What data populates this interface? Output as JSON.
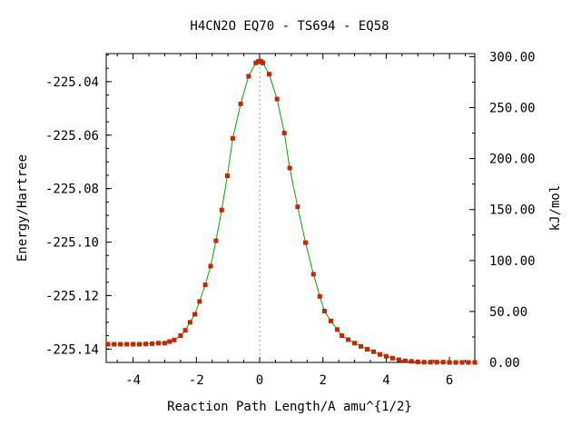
{
  "chart_data": {
    "type": "line",
    "title": "H4CN2O   EQ70 - TS694 - EQ58",
    "xlabel": "Reaction Path Length/A amu^{1/2}",
    "ylabel": "Energy/Hartree",
    "y2label": "kJ/mol",
    "xlim": [
      -4.85,
      6.8
    ],
    "ylim": [
      -225.145,
      -225.0295
    ],
    "y2lim": [
      0.0,
      303.0
    ],
    "x_ticks": [
      "-4",
      "-2",
      "0",
      "2",
      "4",
      "6"
    ],
    "y_ticks": [
      "-225.04",
      "-225.06",
      "-225.08",
      "-225.10",
      "-225.12",
      "-225.14"
    ],
    "y2_ticks": [
      "0.00",
      "50.00",
      "100.00",
      "150.00",
      "200.00",
      "250.00",
      "300.00"
    ],
    "ts_marker_x": 0.0,
    "grid": false,
    "colors": {
      "line": "#00aa00",
      "points": "#cc2200",
      "ts_line": "#999999"
    },
    "series": [
      {
        "x": [
          -4.8,
          -4.6,
          -4.4,
          -4.2,
          -4.0,
          -3.8,
          -3.6,
          -3.4,
          -3.2,
          -3.0,
          -2.85,
          -2.7,
          -2.5,
          -2.35,
          -2.2,
          -2.05,
          -1.9,
          -1.72,
          -1.55,
          -1.38,
          -1.2,
          -1.02,
          -0.85,
          -0.6,
          -0.35,
          -0.12,
          -0.05,
          0.0,
          0.05,
          0.1,
          0.3,
          0.55,
          0.78,
          0.95,
          1.2,
          1.45,
          1.7,
          1.9,
          2.05,
          2.25,
          2.45,
          2.6,
          2.8,
          3.0,
          3.2,
          3.4,
          3.6,
          3.8,
          4.0,
          4.2,
          4.4,
          4.6,
          4.8,
          5.0,
          5.2,
          5.4,
          5.6,
          5.8,
          6.0,
          6.2,
          6.4,
          6.6,
          6.8
        ],
        "y": [
          -225.1382,
          -225.1382,
          -225.1382,
          -225.1382,
          -225.1382,
          -225.1382,
          -225.1381,
          -225.138,
          -225.1378,
          -225.1378,
          -225.1372,
          -225.1366,
          -225.135,
          -225.133,
          -225.13,
          -225.127,
          -225.1222,
          -225.116,
          -225.109,
          -225.0995,
          -225.088,
          -225.0752,
          -225.0612,
          -225.0483,
          -225.038,
          -225.033,
          -225.0325,
          -225.0323,
          -225.0325,
          -225.033,
          -225.0372,
          -225.0465,
          -225.0592,
          -225.0723,
          -225.0868,
          -225.1002,
          -225.112,
          -225.1203,
          -225.1258,
          -225.1295,
          -225.1327,
          -225.135,
          -225.1365,
          -225.1378,
          -225.139,
          -225.1401,
          -225.141,
          -225.142,
          -225.1427,
          -225.1434,
          -225.144,
          -225.1444,
          -225.1446,
          -225.1448,
          -225.1449,
          -225.1449,
          -225.1449,
          -225.1449,
          -225.145,
          -225.145,
          -225.145,
          -225.145,
          -225.145
        ]
      }
    ]
  }
}
